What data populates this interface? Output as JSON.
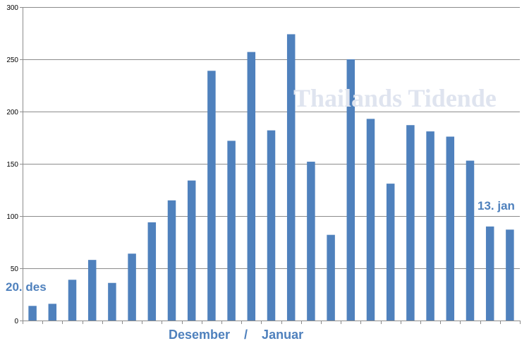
{
  "chart_data": {
    "type": "bar",
    "series_color": "#4f81bd",
    "grid": true,
    "ylim": [
      0,
      300
    ],
    "yticks": [
      0,
      50,
      100,
      150,
      200,
      250,
      300
    ],
    "values": [
      14,
      16,
      39,
      58,
      36,
      64,
      94,
      115,
      134,
      239,
      172,
      257,
      182,
      274,
      152,
      82,
      250,
      193,
      131,
      187,
      181,
      176,
      153,
      90,
      87
    ],
    "xlabel": "Desember    /    Januar",
    "annotations": {
      "start": "20. des",
      "end": "13. jan"
    },
    "watermark": "Thailands Tidende"
  }
}
